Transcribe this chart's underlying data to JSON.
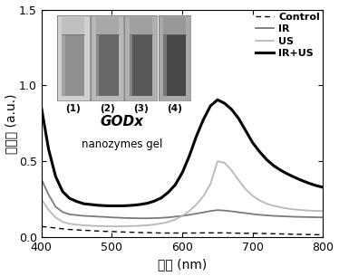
{
  "xlabel": "波长 (nm)",
  "ylabel": "吸光度 (a.u.)",
  "xlim": [
    400,
    800
  ],
  "ylim": [
    0,
    1.5
  ],
  "xticks": [
    400,
    500,
    600,
    700,
    800
  ],
  "yticks": [
    0.0,
    0.5,
    1.0,
    1.5
  ],
  "inset_text1": "GODx",
  "inset_text2": "nanozymes gel",
  "inset_labels": [
    "(1)",
    "(2)",
    "(3)",
    "(4)"
  ],
  "legend_labels": [
    "Control",
    "IR",
    "US",
    "IR+US"
  ],
  "control_x": [
    400,
    410,
    420,
    430,
    440,
    450,
    460,
    470,
    480,
    490,
    500,
    510,
    520,
    530,
    540,
    550,
    560,
    570,
    580,
    590,
    600,
    610,
    620,
    630,
    640,
    650,
    660,
    670,
    680,
    690,
    700,
    710,
    720,
    730,
    740,
    750,
    760,
    770,
    780,
    790,
    800
  ],
  "control_y": [
    0.07,
    0.065,
    0.06,
    0.055,
    0.05,
    0.048,
    0.045,
    0.043,
    0.04,
    0.038,
    0.037,
    0.035,
    0.033,
    0.032,
    0.03,
    0.03,
    0.028,
    0.027,
    0.027,
    0.027,
    0.027,
    0.027,
    0.027,
    0.028,
    0.028,
    0.028,
    0.028,
    0.027,
    0.026,
    0.025,
    0.025,
    0.024,
    0.023,
    0.022,
    0.021,
    0.02,
    0.019,
    0.018,
    0.017,
    0.016,
    0.015
  ],
  "IR_x": [
    400,
    410,
    420,
    430,
    440,
    450,
    460,
    470,
    480,
    490,
    500,
    510,
    520,
    530,
    540,
    550,
    560,
    570,
    580,
    590,
    600,
    610,
    620,
    630,
    640,
    650,
    660,
    670,
    680,
    690,
    700,
    710,
    720,
    730,
    740,
    750,
    760,
    770,
    780,
    790,
    800
  ],
  "IR_y": [
    0.38,
    0.28,
    0.2,
    0.165,
    0.15,
    0.145,
    0.14,
    0.138,
    0.135,
    0.133,
    0.13,
    0.128,
    0.126,
    0.125,
    0.124,
    0.124,
    0.125,
    0.127,
    0.13,
    0.135,
    0.14,
    0.147,
    0.155,
    0.163,
    0.172,
    0.178,
    0.175,
    0.17,
    0.164,
    0.158,
    0.152,
    0.147,
    0.143,
    0.14,
    0.138,
    0.136,
    0.134,
    0.133,
    0.132,
    0.131,
    0.13
  ],
  "US_x": [
    400,
    410,
    420,
    430,
    440,
    450,
    460,
    470,
    480,
    490,
    500,
    510,
    520,
    530,
    540,
    550,
    560,
    570,
    580,
    590,
    600,
    610,
    620,
    630,
    640,
    650,
    660,
    670,
    680,
    690,
    700,
    710,
    720,
    730,
    740,
    750,
    760,
    770,
    780,
    790,
    800
  ],
  "US_y": [
    0.25,
    0.18,
    0.13,
    0.1,
    0.088,
    0.082,
    0.078,
    0.075,
    0.073,
    0.072,
    0.071,
    0.071,
    0.072,
    0.073,
    0.075,
    0.078,
    0.083,
    0.09,
    0.1,
    0.116,
    0.14,
    0.172,
    0.215,
    0.27,
    0.35,
    0.5,
    0.49,
    0.44,
    0.375,
    0.315,
    0.272,
    0.242,
    0.22,
    0.206,
    0.196,
    0.188,
    0.182,
    0.178,
    0.175,
    0.173,
    0.172
  ],
  "IRUS_x": [
    400,
    410,
    420,
    430,
    440,
    450,
    460,
    470,
    480,
    490,
    500,
    510,
    520,
    530,
    540,
    550,
    560,
    570,
    580,
    590,
    600,
    610,
    620,
    630,
    640,
    650,
    660,
    670,
    680,
    690,
    700,
    710,
    720,
    730,
    740,
    750,
    760,
    770,
    780,
    790,
    800
  ],
  "IRUS_y": [
    0.85,
    0.58,
    0.4,
    0.3,
    0.255,
    0.235,
    0.22,
    0.215,
    0.21,
    0.207,
    0.206,
    0.206,
    0.207,
    0.21,
    0.215,
    0.223,
    0.237,
    0.258,
    0.295,
    0.345,
    0.425,
    0.535,
    0.665,
    0.775,
    0.865,
    0.905,
    0.882,
    0.842,
    0.782,
    0.702,
    0.622,
    0.562,
    0.51,
    0.47,
    0.44,
    0.415,
    0.393,
    0.373,
    0.355,
    0.34,
    0.328
  ],
  "control_color": "#000000",
  "IR_color": "#7a7a7a",
  "US_color": "#b8b8b8",
  "IRUS_color": "#000000",
  "background_color": "#ffffff",
  "inset_bg_colors": [
    "#d0d0d0",
    "#b8b8b8",
    "#b0b0b0",
    "#a8a8a8"
  ],
  "inset_tube_colors": [
    "#909090",
    "#686868",
    "#585858",
    "#484848"
  ],
  "inset_top_colors": [
    "#c0c0c0",
    "#a8a8a8",
    "#a0a0a0",
    "#989898"
  ]
}
